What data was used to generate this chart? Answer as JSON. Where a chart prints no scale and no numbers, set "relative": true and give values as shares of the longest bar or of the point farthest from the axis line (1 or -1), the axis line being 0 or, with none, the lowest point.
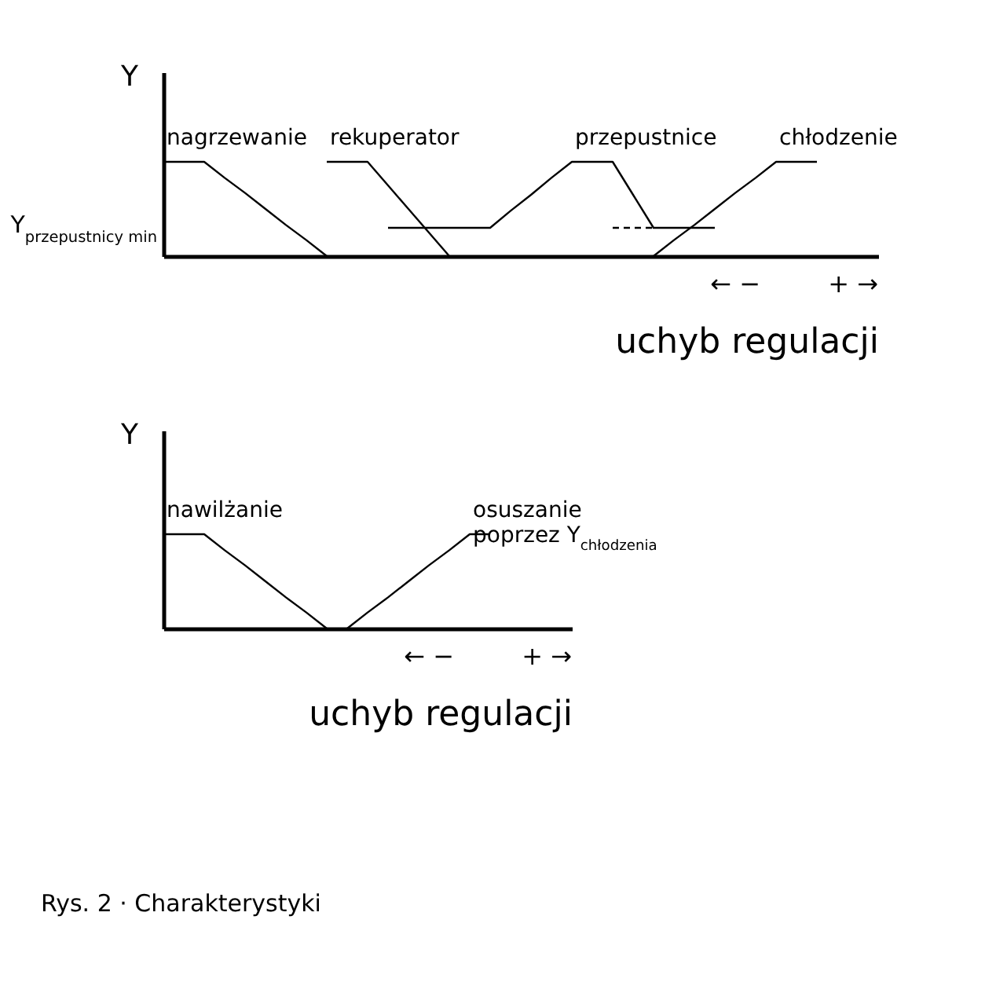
{
  "chart_data": [
    {
      "type": "line",
      "relative": true,
      "xlabel": "uchyb regulacji",
      "ylabel": "Y",
      "marker": "none",
      "grid": false,
      "legend": false,
      "categories": [
        null,
        null,
        null,
        null,
        null,
        null,
        null,
        null,
        null,
        null,
        null,
        null,
        null,
        null,
        null,
        null,
        null,
        null,
        null,
        null,
        null,
        null,
        null,
        null,
        null,
        null,
        null,
        null,
        null,
        null,
        null,
        null,
        null,
        null,
        null,
        null
      ],
      "series": [
        {
          "name": "nagrzewanie",
          "color": "#000000",
          "values": [
            1,
            1,
            1,
            0.83,
            0.67,
            0.5,
            0.33,
            0.17,
            0,
            null,
            null,
            null,
            null,
            null,
            null,
            null,
            null,
            null,
            null,
            null,
            null,
            null,
            null,
            null,
            null,
            null,
            null,
            null,
            null,
            null,
            null,
            null,
            null,
            null,
            null,
            null
          ]
        },
        {
          "name": "rekuperator",
          "color": "#000000",
          "values": [
            null,
            null,
            null,
            null,
            null,
            null,
            null,
            null,
            1,
            1,
            1,
            0.75,
            0.5,
            0.25,
            0,
            null,
            null,
            null,
            null,
            null,
            null,
            null,
            null,
            null,
            null,
            null,
            null,
            null,
            null,
            null,
            null,
            null,
            null,
            null,
            null,
            null
          ]
        },
        {
          "name": "przepustnice",
          "color": "#000000",
          "values": [
            null,
            null,
            null,
            null,
            null,
            null,
            null,
            null,
            null,
            null,
            null,
            0.3,
            0.3,
            0.3,
            0.3,
            0.3,
            0.3,
            0.48,
            0.65,
            0.83,
            1,
            1,
            1,
            0.65,
            0.3,
            0.3,
            0.3,
            0.3,
            null,
            null,
            null,
            null,
            null,
            null,
            null,
            null
          ]
        },
        {
          "color": "#000000",
          "line_style": "dashed",
          "values": [
            null,
            null,
            null,
            null,
            null,
            null,
            null,
            null,
            null,
            null,
            null,
            null,
            null,
            null,
            null,
            null,
            null,
            null,
            null,
            null,
            null,
            null,
            0.3,
            0.3,
            0.3,
            null,
            null,
            null,
            null,
            null,
            null,
            null,
            null,
            null,
            null,
            null
          ]
        },
        {
          "name": "chłodzenie",
          "color": "#000000",
          "values": [
            null,
            null,
            null,
            null,
            null,
            null,
            null,
            null,
            null,
            null,
            null,
            null,
            null,
            null,
            null,
            null,
            null,
            null,
            null,
            null,
            null,
            null,
            null,
            null,
            0,
            0.17,
            0.33,
            0.5,
            0.67,
            0.83,
            1,
            1,
            1,
            null,
            null,
            null
          ]
        }
      ],
      "annotations": [
        "Y$_{przepustnicy min}$",
        "←  −",
        "+  →"
      ]
    },
    {
      "type": "line",
      "relative": true,
      "xlabel": "uchyb regulacji",
      "ylabel": "Y",
      "marker": "none",
      "grid": false,
      "legend": false,
      "categories": [
        null,
        null,
        null,
        null,
        null,
        null,
        null,
        null,
        null,
        null,
        null,
        null,
        null,
        null,
        null,
        null,
        null,
        null,
        null,
        null,
        null
      ],
      "series": [
        {
          "name": "nawilżanie",
          "color": "#000000",
          "values": [
            1,
            1,
            1,
            0.83,
            0.67,
            0.5,
            0.33,
            0.17,
            0,
            null,
            null,
            null,
            null,
            null,
            null,
            null,
            null,
            null,
            null,
            null,
            null
          ]
        },
        {
          "name": "osuszanie\npoprzez Y$_{chłodzenia}$",
          "color": "#000000",
          "values": [
            null,
            null,
            null,
            null,
            null,
            null,
            null,
            null,
            null,
            0,
            0.17,
            0.33,
            0.5,
            0.67,
            0.83,
            1,
            1,
            null,
            null,
            null,
            null
          ]
        }
      ],
      "annotations": [
        "←  −",
        "+  →",
        "Rys. 2 · Charakterystyki"
      ]
    }
  ]
}
